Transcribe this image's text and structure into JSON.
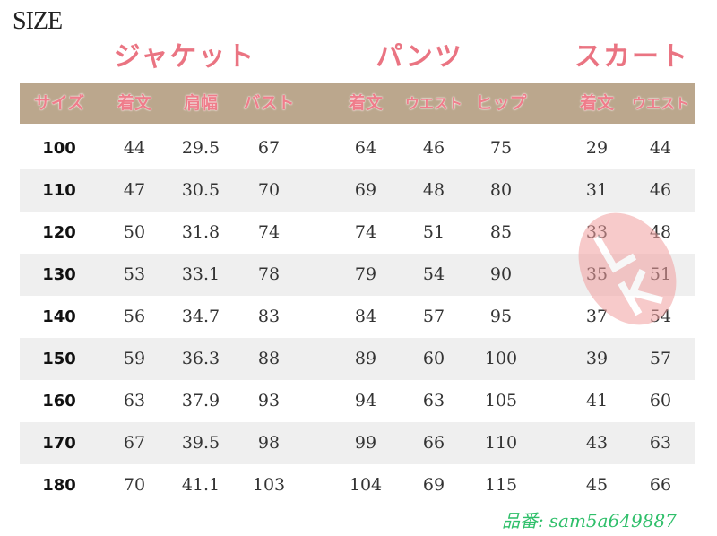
{
  "title": "SIZE",
  "groups": {
    "jacket": "ジャケット",
    "pants": "パンツ",
    "skirt": "スカート"
  },
  "headers": [
    "サイズ",
    "着文",
    "肩幅",
    "バスト",
    "着文",
    "ウエスト",
    "ヒップ",
    "着文",
    "ウエスト"
  ],
  "rows": [
    [
      "100",
      "44",
      "29.5",
      "67",
      "64",
      "46",
      "75",
      "29",
      "44"
    ],
    [
      "110",
      "47",
      "30.5",
      "70",
      "69",
      "48",
      "80",
      "31",
      "46"
    ],
    [
      "120",
      "50",
      "31.8",
      "74",
      "74",
      "51",
      "85",
      "33",
      "48"
    ],
    [
      "130",
      "53",
      "33.1",
      "78",
      "79",
      "54",
      "90",
      "35",
      "51"
    ],
    [
      "140",
      "56",
      "34.7",
      "83",
      "84",
      "57",
      "95",
      "37",
      "54"
    ],
    [
      "150",
      "59",
      "36.3",
      "88",
      "89",
      "60",
      "100",
      "39",
      "57"
    ],
    [
      "160",
      "63",
      "37.9",
      "93",
      "94",
      "63",
      "105",
      "41",
      "60"
    ],
    [
      "170",
      "67",
      "39.5",
      "98",
      "99",
      "66",
      "110",
      "43",
      "63"
    ],
    [
      "180",
      "70",
      "41.1",
      "103",
      "104",
      "69",
      "115",
      "45",
      "66"
    ]
  ],
  "product_code": {
    "label": "品番:",
    "value": "sam5a649887"
  },
  "watermark": "Lang Ki",
  "colors": {
    "header_band": "#bba78d",
    "header_text": "#ef7d8b",
    "group_title": "#ea7482",
    "stripe": "#efefef",
    "code": "#2fbf6a"
  }
}
